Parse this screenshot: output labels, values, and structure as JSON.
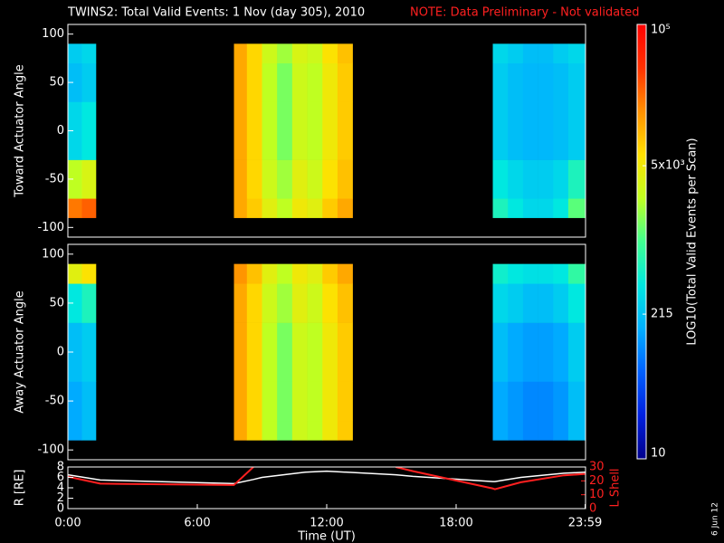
{
  "title": "TWINS2: Total Valid Events:  1 Nov (day 305), 2010",
  "note": "NOTE: Data Preliminary - Not validated",
  "date_stamp": "6 Jun 12",
  "chart_data": [
    {
      "type": "heatmap",
      "ylabel": "Toward Actuator Angle",
      "xlim": [
        0,
        24
      ],
      "ylim": [
        -110,
        110
      ],
      "yticks": [
        -100,
        -50,
        0,
        50,
        100
      ],
      "xbins": [
        0,
        0.65,
        1.3,
        7.7,
        8.3,
        9,
        9.7,
        10.4,
        11.1,
        11.8,
        12.5,
        13.2,
        19.7,
        20.4,
        21.1,
        21.8,
        22.5,
        23.2,
        24
      ],
      "ybins": [
        -90,
        -70,
        -30,
        30,
        70,
        90
      ],
      "values": [
        [
          20000,
          25000,
          null,
          12000,
          8000,
          4000,
          2500,
          5000,
          4000,
          8000,
          12000,
          null,
          600,
          400,
          300,
          300,
          400,
          1200
        ],
        [
          2500,
          3500,
          null,
          12000,
          7000,
          3000,
          2000,
          4000,
          3000,
          6000,
          9000,
          null,
          400,
          300,
          250,
          250,
          300,
          600
        ],
        [
          300,
          400,
          null,
          12000,
          7000,
          2500,
          1500,
          3000,
          2500,
          5000,
          8000,
          null,
          250,
          200,
          180,
          180,
          200,
          250
        ],
        [
          200,
          250,
          null,
          12000,
          7000,
          2500,
          1500,
          3000,
          2500,
          5000,
          8000,
          null,
          250,
          200,
          180,
          180,
          200,
          250
        ],
        [
          250,
          300,
          null,
          12000,
          7000,
          3000,
          2000,
          3500,
          3000,
          6000,
          9000,
          null,
          300,
          250,
          200,
          200,
          250,
          300
        ]
      ],
      "colorbar": {
        "label": "LOG10(Total Valid Events per Scan)",
        "zlim": [
          10,
          100000
        ],
        "log": true,
        "zticks": [
          10,
          215,
          {
            "value": 5000,
            "label": "5x10³"
          },
          {
            "value": 100000,
            "label": "10⁵"
          }
        ],
        "colormap": [
          "#00008c",
          "#0020e0",
          "#0060ff",
          "#00b0ff",
          "#00e8e0",
          "#40ff90",
          "#c0ff20",
          "#ffe000",
          "#ff9000",
          "#ff3000",
          "#ff0000"
        ]
      }
    },
    {
      "type": "heatmap",
      "ylabel": "Away Actuator Angle",
      "xlim": [
        0,
        24
      ],
      "ylim": [
        -110,
        110
      ],
      "yticks": [
        -100,
        -50,
        0,
        50,
        100
      ],
      "xbins": [
        0,
        0.65,
        1.3,
        7.7,
        8.3,
        9,
        9.7,
        10.4,
        11.1,
        11.8,
        12.5,
        13.2,
        19.7,
        20.4,
        21.1,
        21.8,
        22.5,
        23.2,
        24
      ],
      "ybins": [
        -90,
        -70,
        -30,
        30,
        70,
        90
      ],
      "values": [
        [
          150,
          200,
          null,
          12000,
          7000,
          2500,
          1500,
          3000,
          2500,
          5000,
          8000,
          null,
          150,
          120,
          100,
          100,
          120,
          200
        ],
        [
          150,
          200,
          null,
          12000,
          7000,
          2500,
          1500,
          3000,
          2500,
          5000,
          8000,
          null,
          150,
          120,
          100,
          100,
          120,
          200
        ],
        [
          200,
          250,
          null,
          12000,
          7000,
          2500,
          1500,
          3000,
          2500,
          5000,
          8000,
          null,
          200,
          150,
          130,
          130,
          150,
          250
        ],
        [
          400,
          600,
          null,
          12000,
          7000,
          3000,
          2000,
          4000,
          3000,
          6000,
          9000,
          null,
          300,
          250,
          200,
          200,
          250,
          400
        ],
        [
          4000,
          6000,
          null,
          15000,
          9000,
          4000,
          2500,
          5000,
          4000,
          8000,
          12000,
          null,
          500,
          400,
          350,
          350,
          400,
          800
        ]
      ]
    },
    {
      "type": "line",
      "xlabel": "Time (UT)",
      "xlim": [
        0,
        24
      ],
      "xticks": [
        {
          "value": 0,
          "label": "0:00"
        },
        {
          "value": 6,
          "label": "6:00"
        },
        {
          "value": 12,
          "label": "12:00"
        },
        {
          "value": 18,
          "label": "18:00"
        },
        {
          "value": 23.98,
          "label": "23:59"
        }
      ],
      "ylim": [
        0,
        8
      ],
      "yticks": [
        0,
        2,
        4,
        6,
        8
      ],
      "y2lim": [
        0,
        30
      ],
      "y2ticks": [
        0,
        10,
        20,
        30
      ],
      "x": [
        0,
        1.5,
        7.7,
        8.6,
        9,
        11,
        12,
        15.2,
        16,
        19.7,
        19.8,
        21,
        23,
        24
      ],
      "series": [
        {
          "name": "R [RE]",
          "color": "#ffffff",
          "values": [
            6.5,
            5.5,
            4.8,
            5.6,
            6,
            7,
            7.2,
            6.5,
            6.2,
            5.2,
            5.2,
            6,
            6.8,
            7
          ]
        },
        {
          "name": "L Shell",
          "color": "#ff2020",
          "axis": "y2",
          "values": [
            23,
            18,
            17,
            30,
            null,
            null,
            null,
            30,
            27,
            14.5,
            14,
            19,
            24,
            25
          ]
        }
      ]
    }
  ]
}
